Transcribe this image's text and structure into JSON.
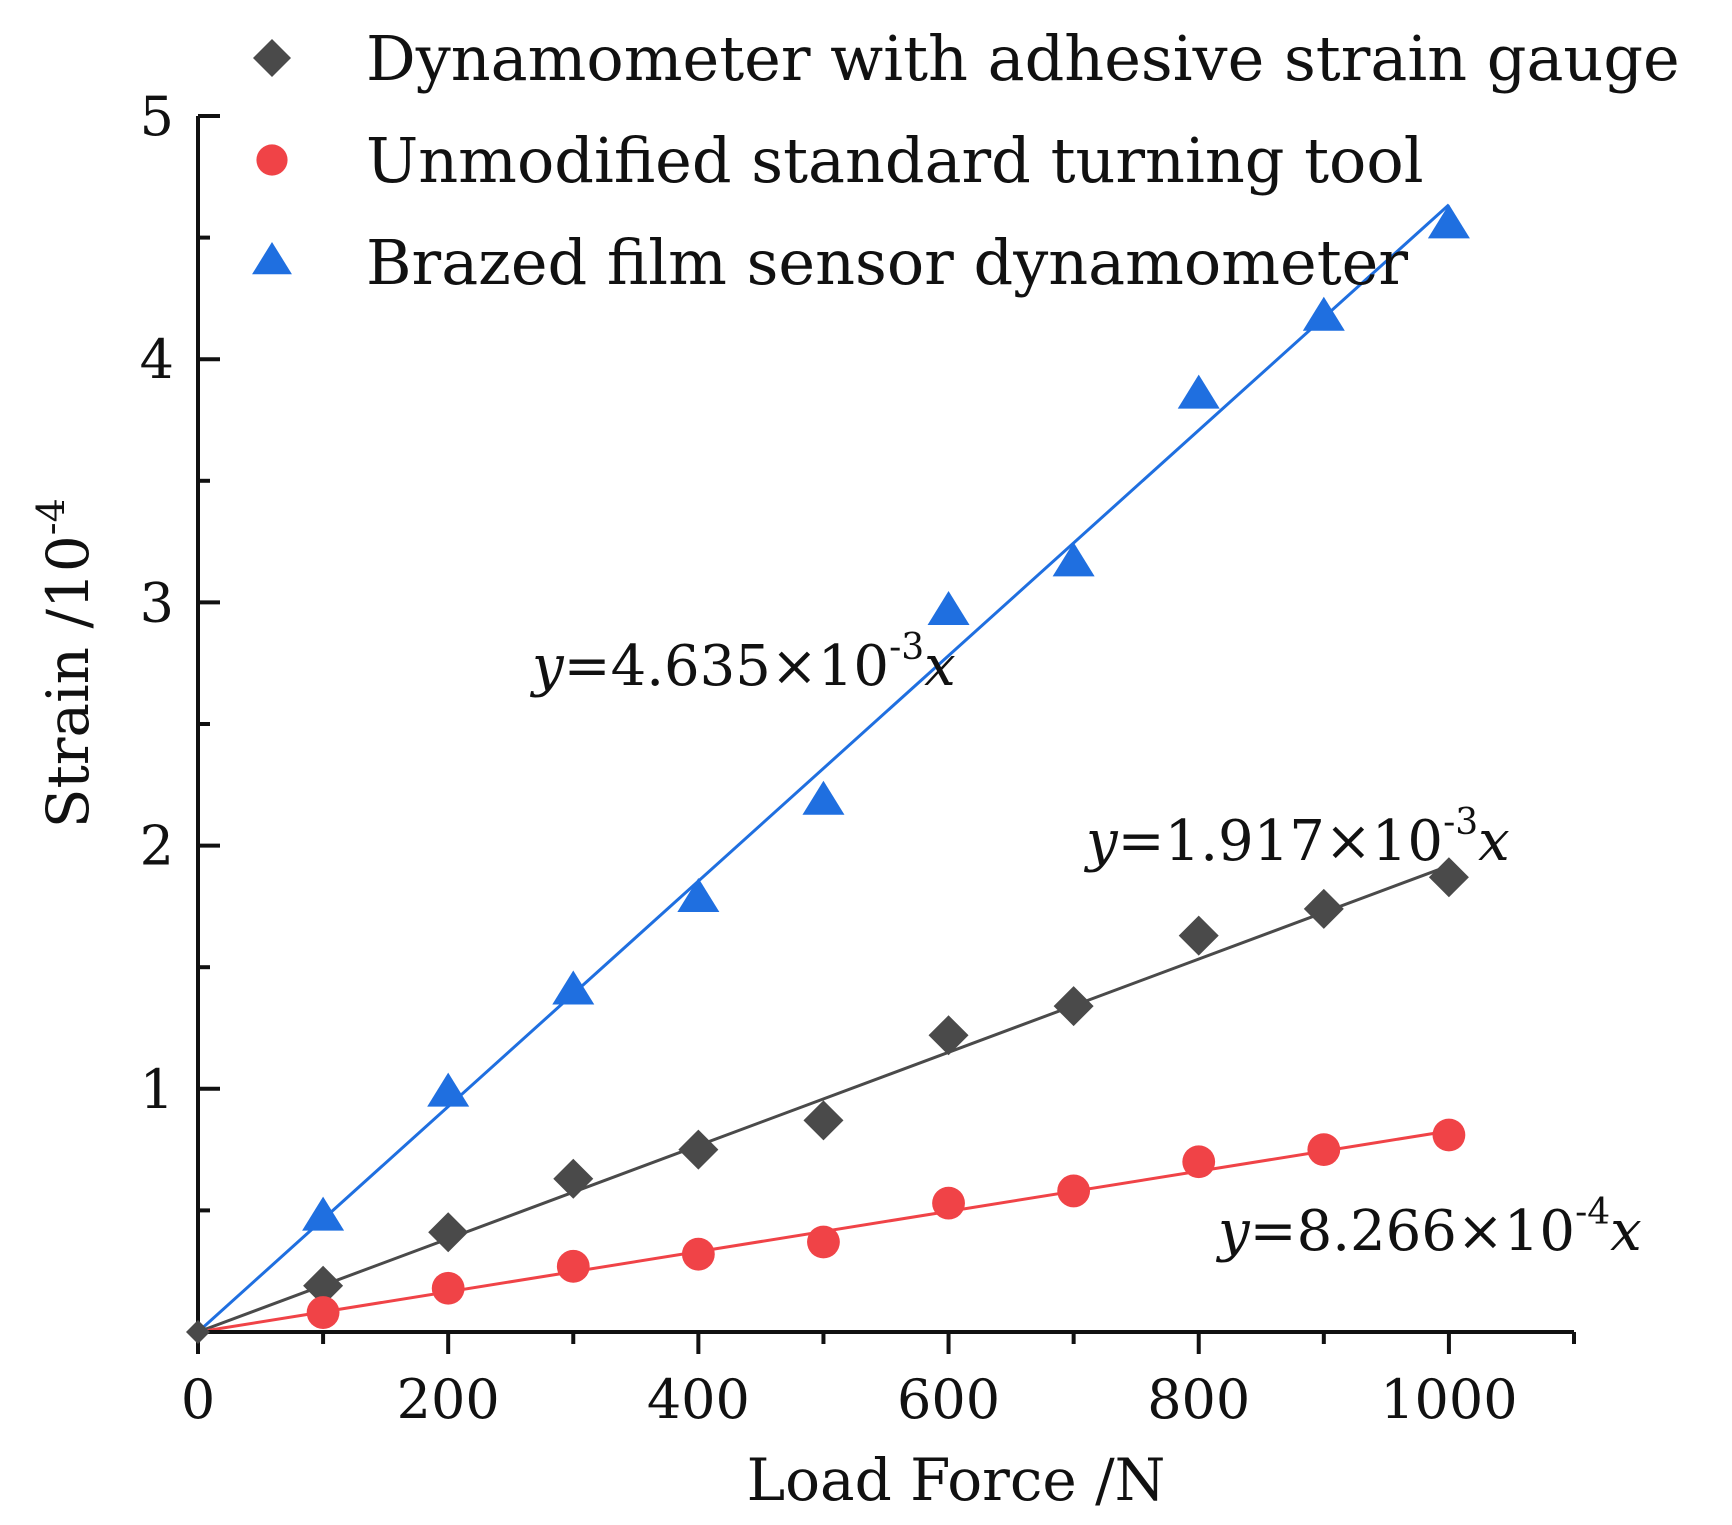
{
  "chart_data": {
    "type": "scatter",
    "xlabel": "Load Force /N",
    "ylabel": "Strain /10",
    "ylabel_exponent": "-4",
    "xlim": [
      0,
      1100
    ],
    "ylim": [
      0,
      5
    ],
    "xticks": [
      0,
      200,
      400,
      600,
      800,
      1000
    ],
    "yticks": [
      1,
      2,
      3,
      4,
      5
    ],
    "grid": false,
    "legend_position": "top",
    "series": [
      {
        "name": "Dynamometer with adhesive strain gauge",
        "marker": "diamond",
        "color": "#4a4a4a",
        "x": [
          100,
          200,
          300,
          400,
          500,
          600,
          700,
          800,
          900,
          1000
        ],
        "y": [
          0.19,
          0.41,
          0.63,
          0.75,
          0.87,
          1.22,
          1.34,
          1.63,
          1.74,
          1.87
        ],
        "fit_slope": 0.001917,
        "equation": {
          "y": "y",
          "eq": "=1.917×10",
          "exp": "-3",
          "x": "x"
        }
      },
      {
        "name": "Unmodified standard turning tool",
        "marker": "circle",
        "color": "#f04347",
        "x": [
          100,
          200,
          300,
          400,
          500,
          600,
          700,
          800,
          900,
          1000
        ],
        "y": [
          0.08,
          0.18,
          0.27,
          0.32,
          0.37,
          0.53,
          0.58,
          0.7,
          0.75,
          0.81
        ],
        "fit_slope": 0.0008266,
        "equation": {
          "y": "y",
          "eq": "=8.266×10",
          "exp": "-4",
          "x": "x"
        }
      },
      {
        "name": "Brazed film sensor dynamometer",
        "marker": "triangle",
        "color": "#1f6fe0",
        "x": [
          100,
          200,
          300,
          400,
          500,
          600,
          700,
          800,
          900,
          1000
        ],
        "y": [
          0.47,
          0.98,
          1.4,
          1.78,
          2.18,
          2.96,
          3.16,
          3.85,
          4.17,
          4.55
        ],
        "fit_slope": 0.004635,
        "equation": {
          "y": "y",
          "eq": "=4.635×10",
          "exp": "-3",
          "x": "x"
        }
      }
    ]
  }
}
